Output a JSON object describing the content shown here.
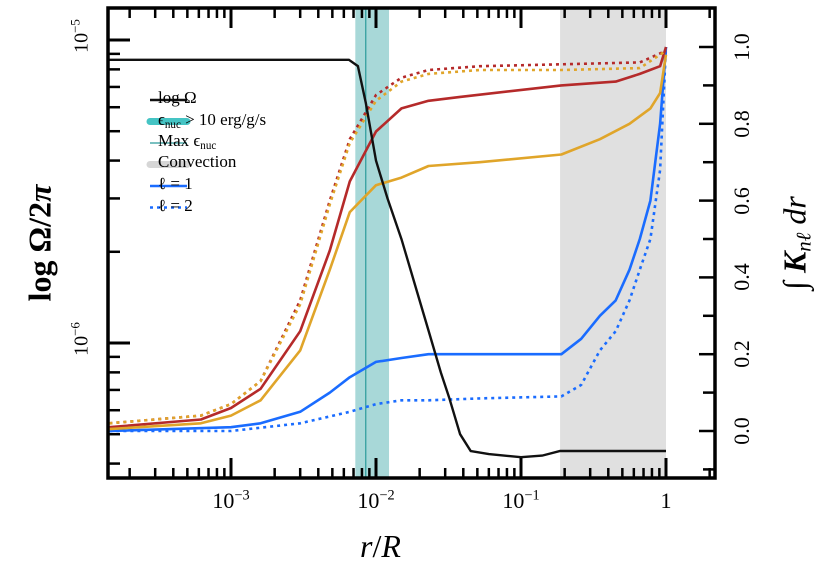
{
  "chart_data": {
    "type": "line",
    "xlabel": {
      "a": "r",
      "slash": "/",
      "b": "R"
    },
    "ylabel_left": {
      "text": "log Ω/2",
      "pi": "π"
    },
    "ylabel_right": {
      "integral": "∫",
      "K": "K",
      "sub": "nℓ",
      "dr": "dr"
    },
    "xscale": "log",
    "yscale_left": "log",
    "xlim": [
      0.000145,
      2.2
    ],
    "ylim_left": [
      3.6e-07,
      1.28e-05
    ],
    "ylim_right": [
      -0.12,
      1.1
    ],
    "grid": false,
    "legend_placement": "upper-left",
    "x_ticks": [
      {
        "value": 0.001,
        "base": "10",
        "exp": "−3"
      },
      {
        "value": 0.01,
        "base": "10",
        "exp": "−2"
      },
      {
        "value": 0.1,
        "base": "10",
        "exp": "−1"
      },
      {
        "value": 1,
        "base": "1",
        "exp": ""
      }
    ],
    "y_left_ticks": [
      {
        "value": 1e-05,
        "base": "10",
        "exp": "−5"
      },
      {
        "value": 1e-06,
        "base": "10",
        "exp": "−6"
      }
    ],
    "y_right_ticks": [
      "0.0",
      "0.2",
      "0.4",
      "0.6",
      "0.8",
      "1.0"
    ],
    "colors": {
      "teal_band": "#a8d8d8",
      "teal_line": "#2a9a9a",
      "convection": "#e0e0e0",
      "black": "#111111",
      "blue": "#1a6cff",
      "red": "#b52a2a",
      "orange": "#e0a52a"
    },
    "legend": [
      {
        "key": "log_omega",
        "label": "log Ω",
        "style": "solid-black"
      },
      {
        "key": "eps_nuc",
        "symbol": "ϵ",
        "sub": "nuc",
        "rest": " > 10 erg/g/s",
        "style": "thick-teal"
      },
      {
        "key": "max_eps",
        "label": "Max ϵ",
        "sub": "nuc",
        "style": "thin-teal"
      },
      {
        "key": "convection",
        "label": "Convection",
        "style": "thick-gray"
      },
      {
        "key": "l1",
        "label": "ℓ = 1",
        "style": "solid-blue"
      },
      {
        "key": "l2",
        "label": "ℓ = 2",
        "style": "dotted-blue"
      }
    ],
    "regions": {
      "eps_nuc_band": [
        0.0072,
        0.0123
      ],
      "max_eps_nuc": 0.0085,
      "convection": [
        0.186,
        1.0
      ]
    },
    "log_omega": {
      "r": [
        0.000145,
        0.0065,
        0.0075,
        0.0085,
        0.01,
        0.012,
        0.015,
        0.019,
        0.023,
        0.028,
        0.032,
        0.038,
        0.045,
        0.06,
        0.1,
        0.14,
        0.186,
        1.0
      ],
      "omega_over_2pi": [
        8.6e-06,
        8.6e-06,
        8.2e-06,
        6.2e-06,
        4e-06,
        3e-06,
        2.2e-06,
        1.5e-06,
        1.1e-06,
        8e-07,
        6.6e-07,
        5e-07,
        4.4e-07,
        4.3e-07,
        4.2e-07,
        4.25e-07,
        4.4e-07,
        4.4e-07
      ]
    },
    "series": [
      {
        "name": "ℓ = 1",
        "color": "blue",
        "dash": "solid",
        "r": [
          0.000145,
          0.001,
          0.0016,
          0.003,
          0.0048,
          0.0066,
          0.01,
          0.015,
          0.023,
          0.052,
          0.19,
          0.26,
          0.35,
          0.45,
          0.56,
          0.66,
          0.78,
          0.91,
          1.0
        ],
        "values": [
          0.0,
          0.01,
          0.02,
          0.05,
          0.1,
          0.14,
          0.18,
          0.19,
          0.2,
          0.2,
          0.2,
          0.24,
          0.3,
          0.34,
          0.42,
          0.5,
          0.6,
          0.8,
          1.0
        ]
      },
      {
        "name": "ℓ = 2",
        "color": "blue",
        "dash": "dotted",
        "r": [
          0.000145,
          0.001,
          0.003,
          0.0066,
          0.01,
          0.015,
          0.023,
          0.052,
          0.19,
          0.26,
          0.35,
          0.45,
          0.56,
          0.66,
          0.78,
          0.91,
          1.0
        ],
        "values": [
          0.0,
          0.0,
          0.02,
          0.05,
          0.07,
          0.08,
          0.08,
          0.085,
          0.09,
          0.12,
          0.21,
          0.26,
          0.34,
          0.42,
          0.5,
          0.68,
          1.0
        ]
      },
      {
        "color": "red",
        "dash": "solid",
        "r": [
          0.000145,
          0.00062,
          0.001,
          0.0016,
          0.003,
          0.0048,
          0.0066,
          0.01,
          0.015,
          0.023,
          0.038,
          0.19,
          0.45,
          0.66,
          0.91,
          1.0
        ],
        "values": [
          0.01,
          0.03,
          0.06,
          0.11,
          0.26,
          0.47,
          0.65,
          0.78,
          0.84,
          0.86,
          0.87,
          0.9,
          0.91,
          0.93,
          0.95,
          1.0
        ]
      },
      {
        "color": "red",
        "dash": "dotted",
        "r": [
          0.000145,
          0.00062,
          0.001,
          0.0016,
          0.003,
          0.0048,
          0.0066,
          0.01,
          0.015,
          0.023,
          0.052,
          0.19,
          0.66,
          1.0
        ],
        "values": [
          0.02,
          0.04,
          0.07,
          0.13,
          0.34,
          0.6,
          0.76,
          0.875,
          0.92,
          0.94,
          0.95,
          0.955,
          0.96,
          0.99
        ]
      },
      {
        "color": "orange",
        "dash": "dotted",
        "r": [
          0.000145,
          0.00062,
          0.001,
          0.0016,
          0.003,
          0.0048,
          0.0066,
          0.01,
          0.015,
          0.023,
          0.052,
          0.19,
          0.66,
          1.0
        ],
        "values": [
          0.02,
          0.04,
          0.07,
          0.13,
          0.33,
          0.59,
          0.75,
          0.86,
          0.91,
          0.93,
          0.94,
          0.94,
          0.945,
          0.99
        ]
      },
      {
        "color": "orange",
        "dash": "solid",
        "r": [
          0.000145,
          0.00062,
          0.001,
          0.0016,
          0.003,
          0.0048,
          0.0066,
          0.01,
          0.015,
          0.023,
          0.052,
          0.19,
          0.35,
          0.56,
          0.78,
          0.91,
          1.0
        ],
        "values": [
          0.005,
          0.02,
          0.04,
          0.08,
          0.21,
          0.42,
          0.57,
          0.64,
          0.66,
          0.69,
          0.7,
          0.72,
          0.76,
          0.8,
          0.84,
          0.88,
          0.98
        ]
      }
    ]
  }
}
